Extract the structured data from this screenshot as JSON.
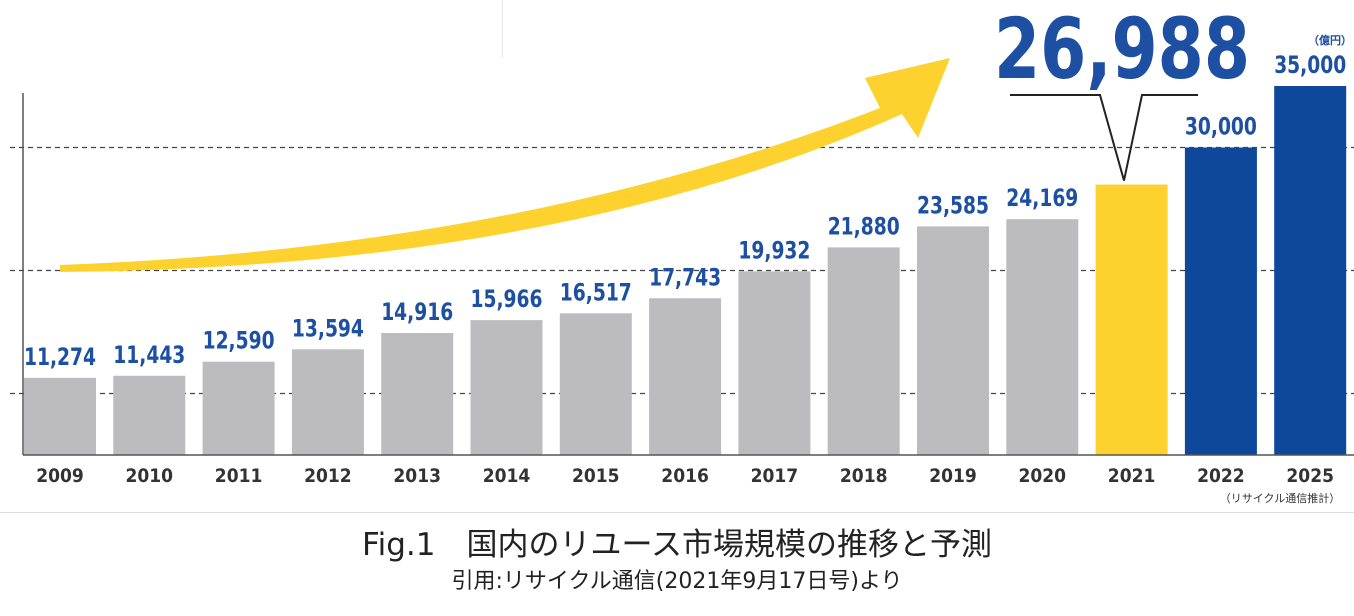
{
  "chart_data": {
    "type": "bar",
    "categories": [
      "2009",
      "2010",
      "2011",
      "2012",
      "2013",
      "2014",
      "2015",
      "2016",
      "2017",
      "2018",
      "2019",
      "2020",
      "2021",
      "2022",
      "2025"
    ],
    "values": [
      11274,
      11443,
      12590,
      13594,
      14916,
      15966,
      16517,
      17743,
      19932,
      21880,
      23585,
      24169,
      26988,
      30000,
      35000
    ],
    "value_labels": [
      "11,274",
      "11,443",
      "12,590",
      "13,594",
      "14,916",
      "15,966",
      "16,517",
      "17,743",
      "19,932",
      "21,880",
      "23,585",
      "24,169",
      "26,988",
      "30,000",
      "35,000"
    ],
    "bar_kinds": [
      "actual",
      "actual",
      "actual",
      "actual",
      "actual",
      "actual",
      "actual",
      "actual",
      "actual",
      "actual",
      "actual",
      "actual",
      "highlight",
      "forecast",
      "forecast"
    ],
    "colors": {
      "actual": "#bcbcbf",
      "highlight": "#fdd22e",
      "forecast": "#0d489b",
      "label": "#1d50a2",
      "arrow": "#fdd22e"
    },
    "ylim": [
      5000,
      35000
    ],
    "gridlines": [
      10000,
      20000,
      30000
    ],
    "grid": true,
    "unit_label": "（億円）",
    "note": "（リサイクル通信推計）",
    "xlabel": "",
    "ylabel": ""
  },
  "figure": {
    "title": "Fig.1　国内のリユース市場規模の推移と予測",
    "source": "引用:リサイクル通信(2021年9月17日号)より"
  }
}
